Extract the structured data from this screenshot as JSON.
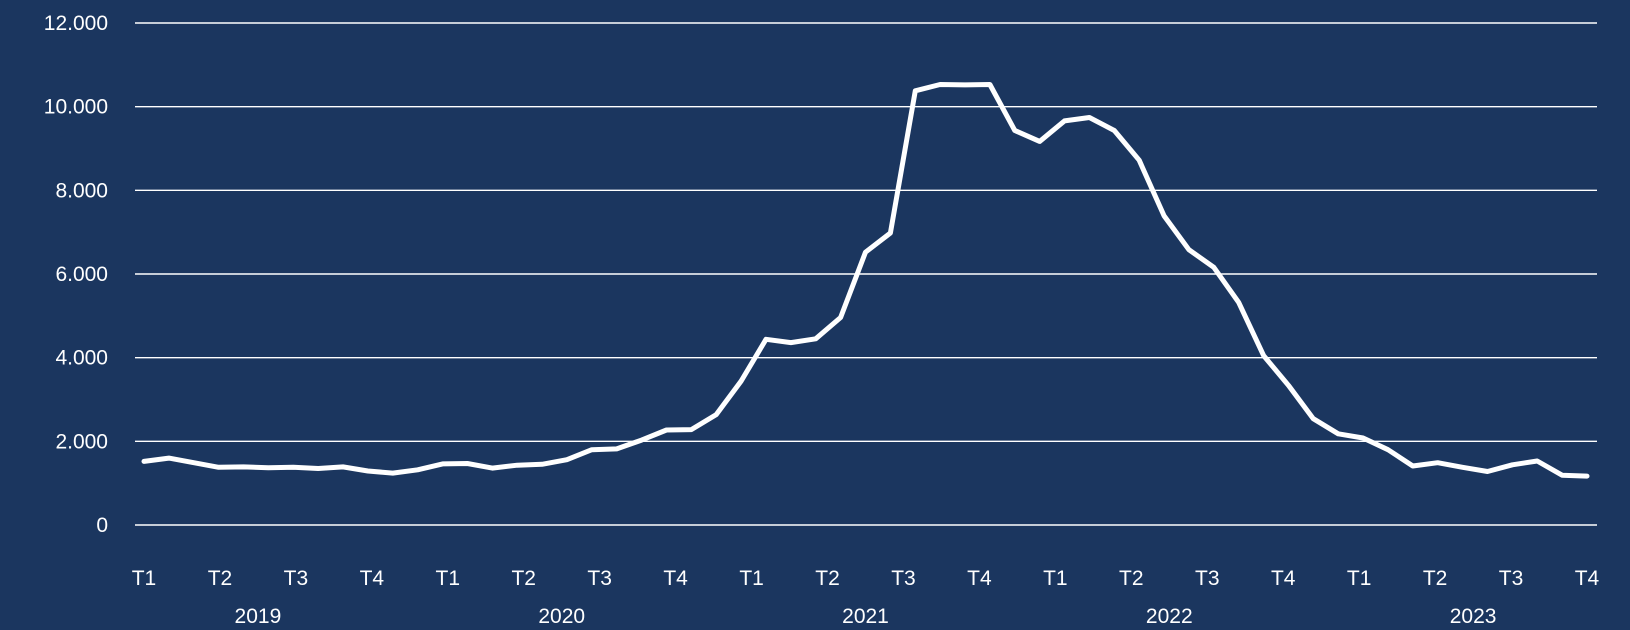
{
  "chart_data": {
    "type": "line",
    "title": "",
    "xlabel": "",
    "ylabel": "",
    "ylim": [
      0,
      12000
    ],
    "grid": true,
    "legend": "none",
    "colors": {
      "background": "#1b365f",
      "line": "#ffffff",
      "grid": "#ffffff",
      "text": "#ffffff"
    },
    "y_ticks": [
      {
        "value": 0,
        "label": "0"
      },
      {
        "value": 2000,
        "label": "2.000"
      },
      {
        "value": 4000,
        "label": "4.000"
      },
      {
        "value": 6000,
        "label": "6.000"
      },
      {
        "value": 8000,
        "label": "8.000"
      },
      {
        "value": 10000,
        "label": "10.000"
      },
      {
        "value": 12000,
        "label": "12.000"
      }
    ],
    "quarter_labels": [
      "T1",
      "T2",
      "T3",
      "T4",
      "T1",
      "T2",
      "T3",
      "T4",
      "T1",
      "T2",
      "T3",
      "T4",
      "T1",
      "T2",
      "T3",
      "T4",
      "T1",
      "T2",
      "T3",
      "T4"
    ],
    "year_labels": [
      "2019",
      "2020",
      "2021",
      "2022",
      "2023"
    ],
    "series": [
      {
        "values": [
          1520,
          1600,
          1490,
          1380,
          1390,
          1370,
          1380,
          1350,
          1390,
          1290,
          1240,
          1320,
          1460,
          1470,
          1360,
          1430,
          1450,
          1560,
          1800,
          1820,
          2030,
          2270,
          2280,
          2640,
          3440,
          4440,
          4360,
          4450,
          4960,
          6520,
          6980,
          10380,
          10530,
          10520,
          10530,
          9430,
          9170,
          9660,
          9740,
          9430,
          8720,
          7390,
          6580,
          6160,
          5320,
          4050,
          3340,
          2540,
          2180,
          2080,
          1800,
          1410,
          1490,
          1380,
          1280,
          1440,
          1530,
          1190,
          1170
        ]
      }
    ]
  }
}
